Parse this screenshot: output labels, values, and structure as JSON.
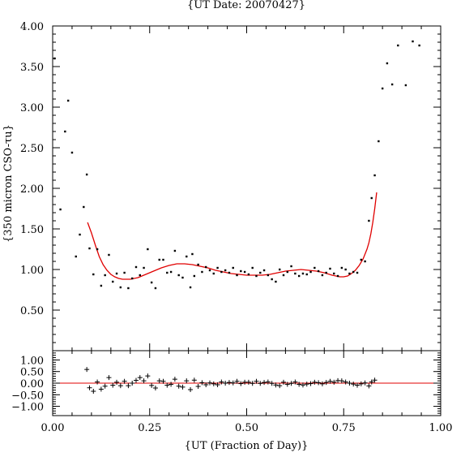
{
  "chart_data": [
    {
      "type": "scatter",
      "title": "{UT Date: 20070427}",
      "xlabel": "",
      "ylabel": "{350 micron CSO-τu}",
      "xlim": [
        0.0,
        1.0
      ],
      "ylim": [
        0.0,
        4.0
      ],
      "ytick_labels": [
        "0.50",
        "1.00",
        "1.50",
        "2.00",
        "2.50",
        "3.00",
        "3.50",
        "4.00"
      ],
      "grid": false,
      "colors": {
        "points": "#000000",
        "fit": "#e00000"
      },
      "series": [
        {
          "marker": "dot",
          "x": [
            0.005,
            0.02,
            0.032,
            0.04,
            0.05,
            0.06,
            0.07,
            0.08,
            0.088,
            0.095,
            0.105,
            0.115,
            0.125,
            0.135,
            0.145,
            0.155,
            0.165,
            0.175,
            0.185,
            0.195,
            0.205,
            0.215,
            0.225,
            0.235,
            0.245,
            0.255,
            0.265,
            0.275,
            0.285,
            0.295,
            0.305,
            0.315,
            0.325,
            0.335,
            0.345,
            0.355,
            0.36,
            0.365,
            0.375,
            0.385,
            0.395,
            0.405,
            0.415,
            0.425,
            0.435,
            0.445,
            0.455,
            0.465,
            0.475,
            0.485,
            0.495,
            0.505,
            0.515,
            0.525,
            0.535,
            0.545,
            0.555,
            0.565,
            0.575,
            0.585,
            0.595,
            0.605,
            0.615,
            0.625,
            0.635,
            0.645,
            0.655,
            0.665,
            0.675,
            0.685,
            0.695,
            0.705,
            0.715,
            0.725,
            0.735,
            0.745,
            0.755,
            0.765,
            0.775,
            0.785,
            0.795,
            0.805,
            0.815,
            0.822,
            0.83,
            0.84,
            0.85,
            0.862,
            0.875,
            0.89,
            0.91,
            0.928,
            0.945
          ],
          "y": [
            3.6,
            1.74,
            2.7,
            3.08,
            2.44,
            1.16,
            1.43,
            1.77,
            2.17,
            1.26,
            0.94,
            1.25,
            0.8,
            0.93,
            1.18,
            0.85,
            0.95,
            0.78,
            0.96,
            0.77,
            0.89,
            1.03,
            0.93,
            1.02,
            1.25,
            0.84,
            0.77,
            1.12,
            1.12,
            0.96,
            0.97,
            1.23,
            0.93,
            0.9,
            1.16,
            0.78,
            1.19,
            0.92,
            1.06,
            0.97,
            1.03,
            0.99,
            0.95,
            1.02,
            0.97,
            0.99,
            0.96,
            1.02,
            0.93,
            0.98,
            0.97,
            0.94,
            1.02,
            0.92,
            0.96,
            0.99,
            0.93,
            0.88,
            0.85,
            1.0,
            0.93,
            0.97,
            1.04,
            0.95,
            0.92,
            0.95,
            0.94,
            0.97,
            1.02,
            0.98,
            0.93,
            0.96,
            1.01,
            0.95,
            0.92,
            1.02,
            1.0,
            0.95,
            0.97,
            0.96,
            1.12,
            1.1,
            1.6,
            1.88,
            2.16,
            2.58,
            3.23,
            3.54,
            3.28,
            3.76,
            3.27,
            3.81,
            3.76
          ]
        },
        {
          "type": "line",
          "role": "polynomial-fit",
          "x": [
            0.09,
            0.1,
            0.11,
            0.12,
            0.13,
            0.14,
            0.15,
            0.16,
            0.17,
            0.18,
            0.19,
            0.2,
            0.22,
            0.24,
            0.26,
            0.28,
            0.3,
            0.32,
            0.34,
            0.36,
            0.38,
            0.4,
            0.42,
            0.44,
            0.46,
            0.48,
            0.5,
            0.52,
            0.54,
            0.56,
            0.58,
            0.6,
            0.62,
            0.64,
            0.66,
            0.68,
            0.7,
            0.72,
            0.74,
            0.75,
            0.76,
            0.77,
            0.78,
            0.79,
            0.8,
            0.81,
            0.815,
            0.82,
            0.825,
            0.83,
            0.835
          ],
          "y": [
            1.58,
            1.45,
            1.3,
            1.16,
            1.06,
            0.99,
            0.94,
            0.91,
            0.89,
            0.88,
            0.88,
            0.88,
            0.9,
            0.94,
            0.98,
            1.02,
            1.05,
            1.07,
            1.07,
            1.06,
            1.04,
            1.02,
            0.99,
            0.97,
            0.95,
            0.94,
            0.93,
            0.93,
            0.93,
            0.94,
            0.96,
            0.98,
            0.99,
            1.0,
            0.99,
            0.98,
            0.96,
            0.93,
            0.91,
            0.91,
            0.92,
            0.95,
            0.99,
            1.05,
            1.13,
            1.25,
            1.33,
            1.44,
            1.58,
            1.75,
            1.95
          ]
        }
      ]
    },
    {
      "type": "scatter",
      "role": "residuals",
      "xlabel": "{UT (Fraction of Day)}",
      "ylabel": "",
      "xlim": [
        0.0,
        1.0
      ],
      "ylim": [
        -1.4,
        1.4
      ],
      "xtick_labels": [
        "0.00",
        "0.25",
        "0.50",
        "0.75",
        "1.00"
      ],
      "ytick_labels": [
        "−1.00",
        "−0.50",
        "0.00",
        "0.50",
        "1.00"
      ],
      "grid": false,
      "zero_line": 0,
      "colors": {
        "points": "#000000",
        "zero_line": "#e00000"
      },
      "series": [
        {
          "marker": "plus",
          "x": [
            0.088,
            0.095,
            0.105,
            0.115,
            0.125,
            0.135,
            0.145,
            0.155,
            0.165,
            0.175,
            0.185,
            0.195,
            0.205,
            0.215,
            0.225,
            0.235,
            0.245,
            0.255,
            0.265,
            0.275,
            0.285,
            0.295,
            0.305,
            0.315,
            0.325,
            0.335,
            0.345,
            0.355,
            0.365,
            0.375,
            0.385,
            0.395,
            0.405,
            0.415,
            0.425,
            0.435,
            0.445,
            0.455,
            0.465,
            0.475,
            0.485,
            0.495,
            0.505,
            0.515,
            0.525,
            0.535,
            0.545,
            0.555,
            0.565,
            0.575,
            0.585,
            0.595,
            0.605,
            0.615,
            0.625,
            0.635,
            0.645,
            0.655,
            0.665,
            0.675,
            0.685,
            0.695,
            0.705,
            0.715,
            0.725,
            0.735,
            0.745,
            0.755,
            0.765,
            0.775,
            0.785,
            0.795,
            0.805,
            0.815,
            0.822,
            0.83
          ],
          "y": [
            0.59,
            -0.2,
            -0.35,
            0.05,
            -0.26,
            -0.13,
            0.24,
            -0.09,
            0.04,
            -0.11,
            0.08,
            -0.11,
            0.0,
            0.12,
            0.24,
            0.1,
            0.31,
            -0.1,
            -0.21,
            0.1,
            0.08,
            -0.09,
            -0.05,
            0.17,
            -0.13,
            -0.17,
            0.1,
            -0.28,
            0.13,
            -0.14,
            0.02,
            -0.07,
            0.01,
            -0.03,
            -0.07,
            0.05,
            0.0,
            0.03,
            0.01,
            0.08,
            -0.02,
            0.04,
            0.04,
            -0.01,
            0.08,
            -0.01,
            0.03,
            0.05,
            -0.01,
            -0.08,
            -0.11,
            0.04,
            -0.05,
            -0.01,
            0.05,
            -0.05,
            -0.08,
            -0.04,
            -0.02,
            0.04,
            0.02,
            -0.03,
            0.03,
            0.08,
            0.04,
            0.11,
            0.1,
            0.05,
            0.0,
            -0.04,
            -0.09,
            -0.03,
            0.01,
            -0.12,
            0.05,
            0.13
          ]
        }
      ]
    }
  ]
}
